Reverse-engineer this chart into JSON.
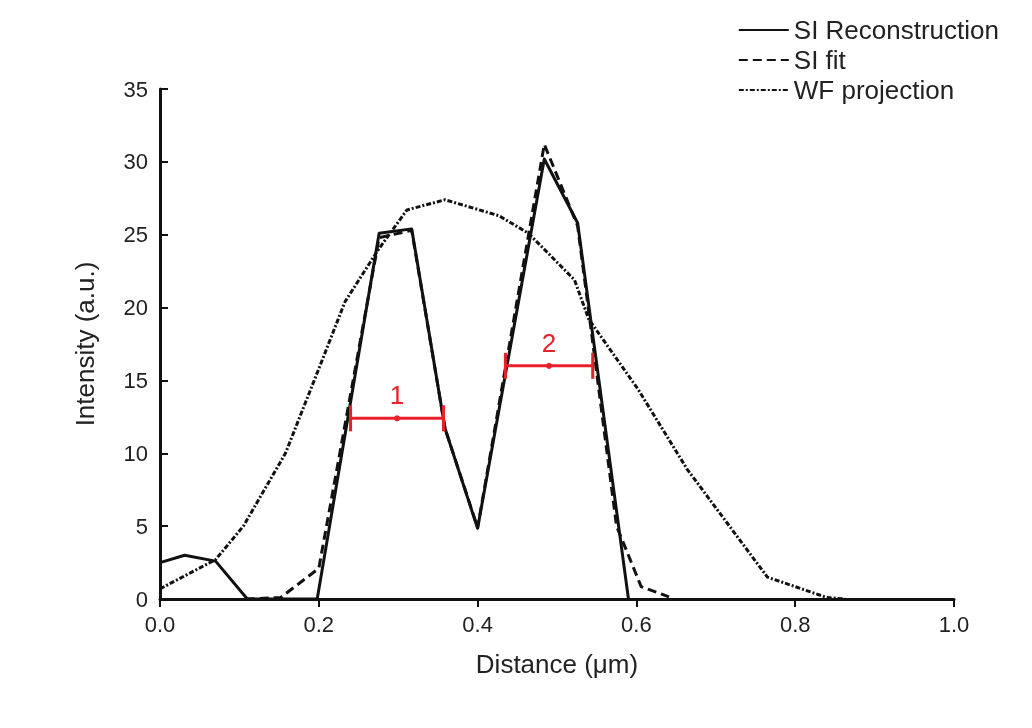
{
  "chart_data": {
    "type": "line",
    "xlabel": "Distance (μm)",
    "ylabel": "Intensity (a.u.)",
    "xlim": [
      0,
      1
    ],
    "xticks": [
      {
        "value": 0,
        "label": "0.0"
      },
      {
        "value": 0.2,
        "label": "0.2"
      },
      {
        "value": 0.4,
        "label": "0.4"
      },
      {
        "value": 0.6,
        "label": "0.6"
      },
      {
        "value": 0.8,
        "label": "0.8"
      },
      {
        "value": 1,
        "label": "1.0"
      }
    ],
    "ylim": [
      0,
      35
    ],
    "yticks": [
      0,
      5,
      10,
      15,
      20,
      25,
      30,
      35
    ],
    "grid": false,
    "legend": "top right",
    "marker": "none",
    "series": [
      {
        "name": "WF projection",
        "color": "#111111",
        "line_style": "dashdot",
        "x": [
          0,
          0.07,
          0.105,
          0.158,
          0.2,
          0.233,
          0.274,
          0.311,
          0.359,
          0.427,
          0.464,
          0.522,
          0.54,
          0.602,
          0.664,
          0.765,
          0.84,
          0.863
        ],
        "values": [
          0.7,
          2.7,
          5,
          10,
          15.8,
          20.4,
          23.9,
          26.7,
          27.4,
          26.3,
          25.1,
          21.9,
          19.2,
          14.4,
          8.9,
          1.5,
          0.1,
          0
        ]
      },
      {
        "name": "SI fit",
        "color": "#111111",
        "line_style": "dashed",
        "x": [
          0.108,
          0.152,
          0.2,
          0.276,
          0.317,
          0.359,
          0.4,
          0.484,
          0.526,
          0.575,
          0.606,
          0.641
        ],
        "values": [
          0,
          0.1,
          2.1,
          24.8,
          25.3,
          11.7,
          4.9,
          31.2,
          25.6,
          5,
          0.85,
          0.15
        ]
      },
      {
        "name": "SI Reconstruction",
        "color": "#111111",
        "line_style": "solid",
        "x": [
          0,
          0.031,
          0.07,
          0.11,
          0.15,
          0.198,
          0.276,
          0.317,
          0.359,
          0.4,
          0.484,
          0.526,
          0.59
        ],
        "values": [
          2.5,
          3,
          2.6,
          0,
          0,
          0,
          25.1,
          25.4,
          11.7,
          4.85,
          30.2,
          25.8,
          0
        ]
      },
      {
        "type": "scatter",
        "color": "#e8202a",
        "x": [
          0.2985
        ],
        "values": [
          12.4
        ],
        "marker": "circle",
        "xerrors": [
          [
            0.24,
            0.357
          ]
        ]
      },
      {
        "type": "scatter",
        "color": "#e8202a",
        "x": [
          0.49
        ],
        "values": [
          16
        ],
        "marker": "circle",
        "xerrors": [
          [
            0.435,
            0.545
          ]
        ]
      }
    ],
    "annotations": [
      "1",
      "2"
    ]
  }
}
